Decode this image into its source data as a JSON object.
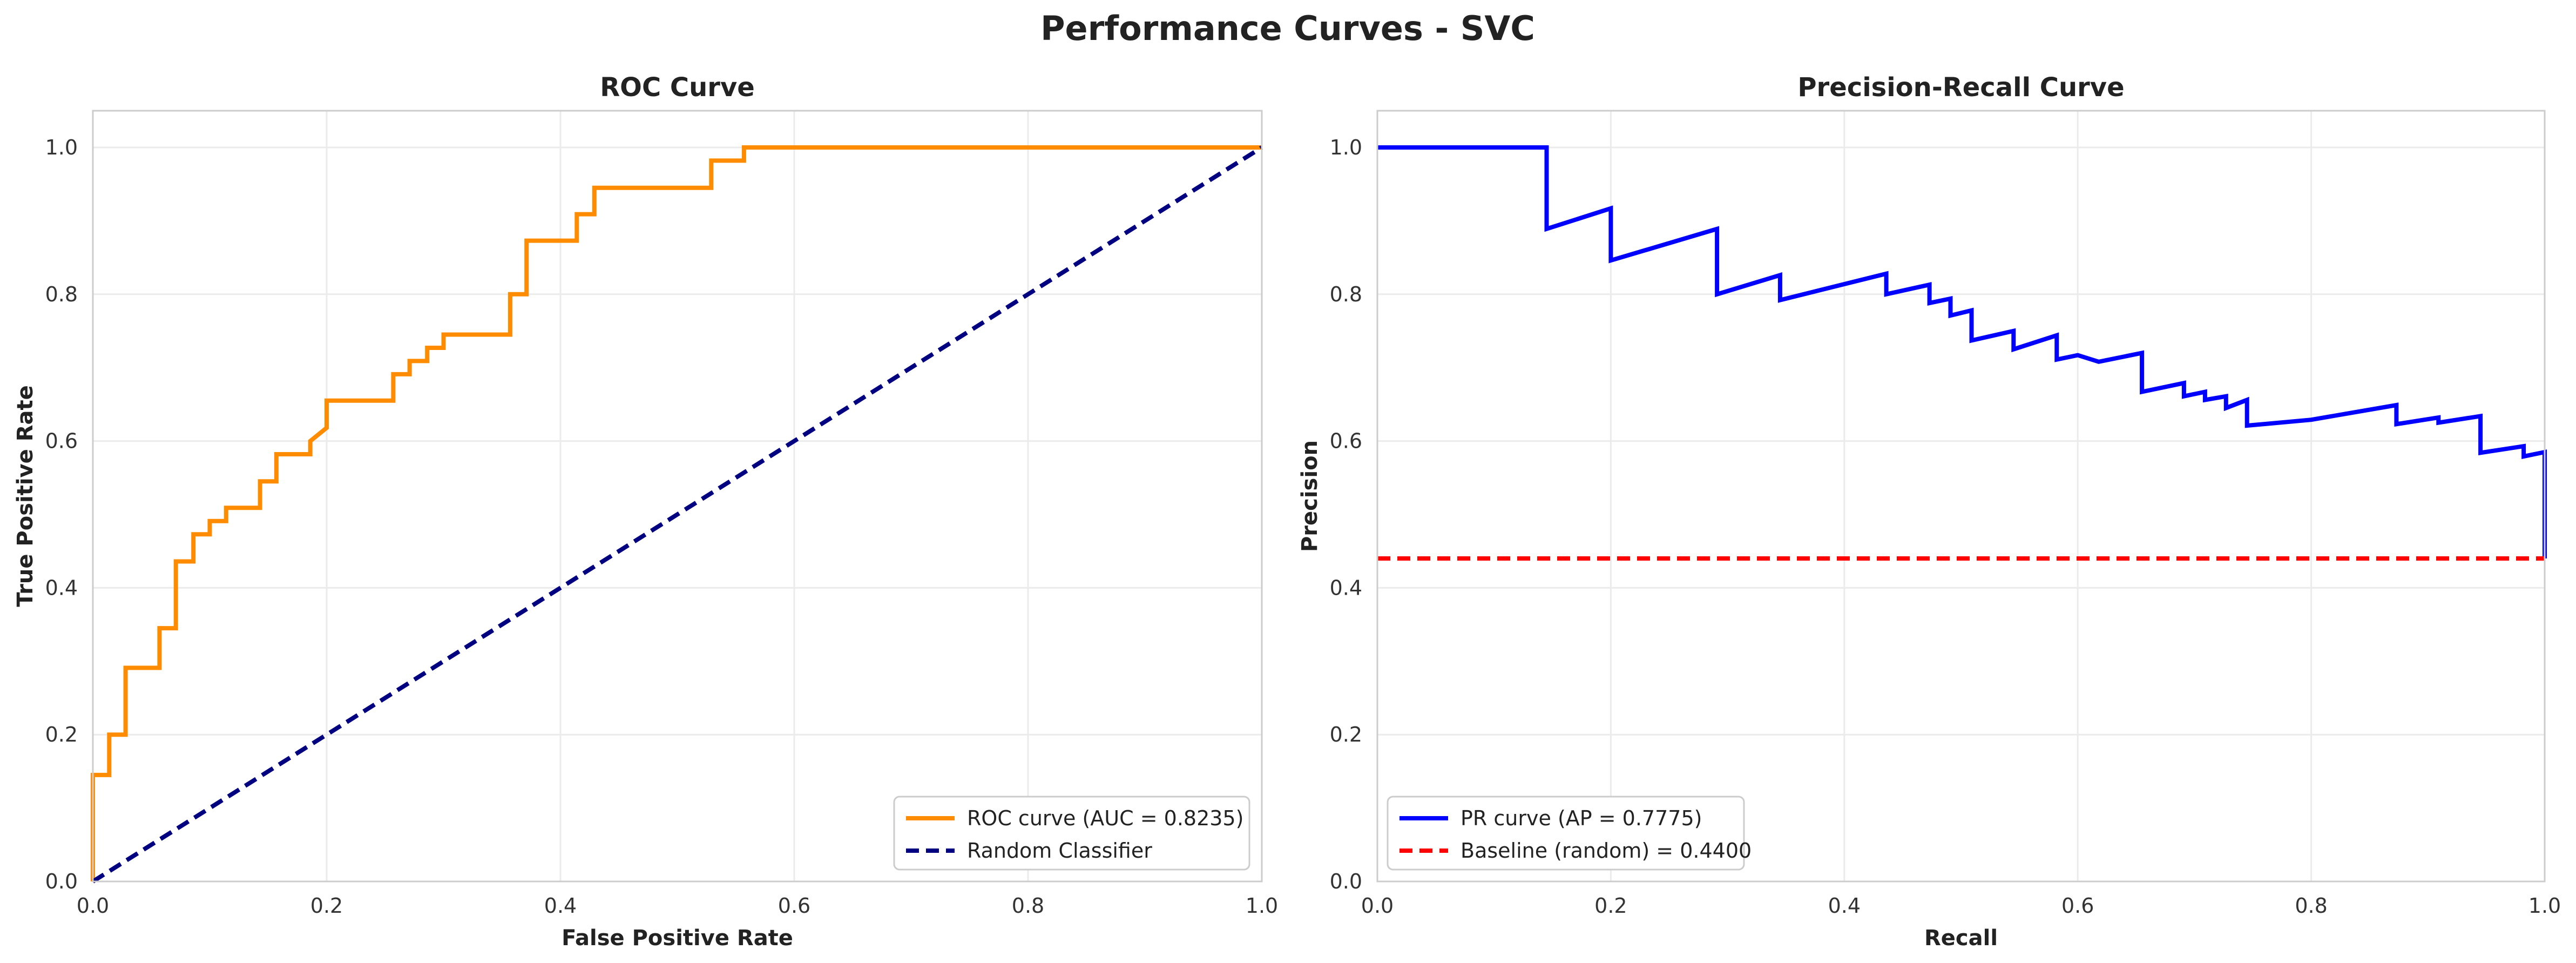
{
  "figure": {
    "title": "Performance Curves - SVC"
  },
  "chart_data": [
    {
      "type": "line",
      "title": "ROC Curve",
      "xlabel": "False Positive Rate",
      "ylabel": "True Positive Rate",
      "xlim": [
        0.0,
        1.0
      ],
      "ylim": [
        0.0,
        1.05
      ],
      "xticks": [
        "0.0",
        "0.2",
        "0.4",
        "0.6",
        "0.8",
        "1.0"
      ],
      "yticks": [
        "0.0",
        "0.2",
        "0.4",
        "0.6",
        "0.8",
        "1.0"
      ],
      "grid": true,
      "legend_position": "lower-right",
      "series": [
        {
          "name": "ROC curve (AUC = 0.8235)",
          "color": "#ff8c00",
          "style": "solid",
          "step": true,
          "x": [
            0.0,
            0.0,
            0.014,
            0.014,
            0.028,
            0.028,
            0.057,
            0.057,
            0.071,
            0.071,
            0.086,
            0.086,
            0.1,
            0.1,
            0.114,
            0.114,
            0.143,
            0.143,
            0.157,
            0.157,
            0.186,
            0.186,
            0.2,
            0.2,
            0.257,
            0.257,
            0.271,
            0.271,
            0.286,
            0.286,
            0.3,
            0.3,
            0.357,
            0.357,
            0.371,
            0.371,
            0.414,
            0.414,
            0.429,
            0.429,
            0.529,
            0.529,
            0.557,
            0.557,
            1.0
          ],
          "y": [
            0.0,
            0.145,
            0.145,
            0.2,
            0.2,
            0.291,
            0.291,
            0.345,
            0.345,
            0.436,
            0.436,
            0.473,
            0.473,
            0.491,
            0.491,
            0.509,
            0.509,
            0.545,
            0.545,
            0.582,
            0.582,
            0.6,
            0.618,
            0.655,
            0.655,
            0.691,
            0.691,
            0.709,
            0.709,
            0.727,
            0.727,
            0.745,
            0.745,
            0.8,
            0.8,
            0.873,
            0.873,
            0.909,
            0.909,
            0.945,
            0.945,
            0.982,
            0.982,
            1.0,
            1.0
          ]
        },
        {
          "name": "Random Classifier",
          "color": "#000080",
          "style": "dashed",
          "step": false,
          "x": [
            0.0,
            1.0
          ],
          "y": [
            0.0,
            1.0
          ]
        }
      ]
    },
    {
      "type": "line",
      "title": "Precision-Recall Curve",
      "xlabel": "Recall",
      "ylabel": "Precision",
      "xlim": [
        0.0,
        1.0
      ],
      "ylim": [
        0.0,
        1.05
      ],
      "xticks": [
        "0.0",
        "0.2",
        "0.4",
        "0.6",
        "0.8",
        "1.0"
      ],
      "yticks": [
        "0.0",
        "0.2",
        "0.4",
        "0.6",
        "0.8",
        "1.0"
      ],
      "grid": true,
      "legend_position": "lower-left",
      "series": [
        {
          "name": "PR curve (AP = 0.7775)",
          "color": "#0000ff",
          "style": "solid",
          "step": false,
          "x": [
            0.0,
            0.145,
            0.145,
            0.2,
            0.2,
            0.291,
            0.291,
            0.345,
            0.345,
            0.436,
            0.436,
            0.473,
            0.473,
            0.491,
            0.491,
            0.509,
            0.509,
            0.545,
            0.545,
            0.582,
            0.582,
            0.6,
            0.618,
            0.655,
            0.655,
            0.691,
            0.691,
            0.709,
            0.709,
            0.727,
            0.727,
            0.745,
            0.745,
            0.8,
            0.873,
            0.873,
            0.909,
            0.909,
            0.945,
            0.945,
            0.982,
            0.982,
            1.0,
            1.0
          ],
          "y": [
            1.0,
            1.0,
            0.889,
            0.917,
            0.846,
            0.889,
            0.8,
            0.826,
            0.792,
            0.828,
            0.8,
            0.813,
            0.788,
            0.794,
            0.771,
            0.778,
            0.737,
            0.75,
            0.725,
            0.744,
            0.711,
            0.717,
            0.708,
            0.72,
            0.667,
            0.679,
            0.661,
            0.667,
            0.656,
            0.661,
            0.645,
            0.656,
            0.621,
            0.629,
            0.649,
            0.623,
            0.632,
            0.625,
            0.634,
            0.584,
            0.593,
            0.579,
            0.585,
            0.44
          ]
        },
        {
          "name": "Baseline (random) = 0.4400",
          "color": "#ff0000",
          "style": "dashed",
          "step": false,
          "x": [
            0.0,
            1.0
          ],
          "y": [
            0.44,
            0.44
          ]
        }
      ]
    }
  ]
}
